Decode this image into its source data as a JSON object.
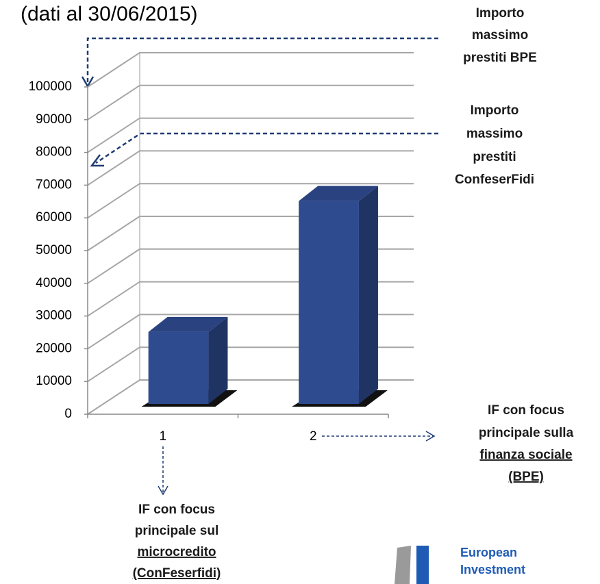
{
  "chart_data": {
    "type": "bar",
    "title": "(dati al 30/06/2015)",
    "categories": [
      "1",
      "2"
    ],
    "values": [
      22000,
      62000
    ],
    "color": "#2e4b8f",
    "ylim": [
      0,
      100000
    ],
    "yticks": [
      0,
      10000,
      20000,
      30000,
      40000,
      50000,
      60000,
      70000,
      80000,
      90000,
      100000
    ],
    "grid": true,
    "annotations": [
      {
        "lines": [
          "Importo",
          "massimo",
          "prestiti BPE"
        ]
      },
      {
        "lines": [
          "Importo",
          "massimo",
          "prestiti",
          "ConfeserFidi"
        ]
      },
      {
        "lines": [
          "IF con focus",
          "principale sulla",
          "finanza sociale",
          "(BPE)"
        ]
      },
      {
        "lines": [
          "IF con focus",
          "principale sul",
          "microcredito",
          "(ConFeserfidi)"
        ]
      }
    ]
  },
  "logo": [
    "European",
    "Investment"
  ]
}
